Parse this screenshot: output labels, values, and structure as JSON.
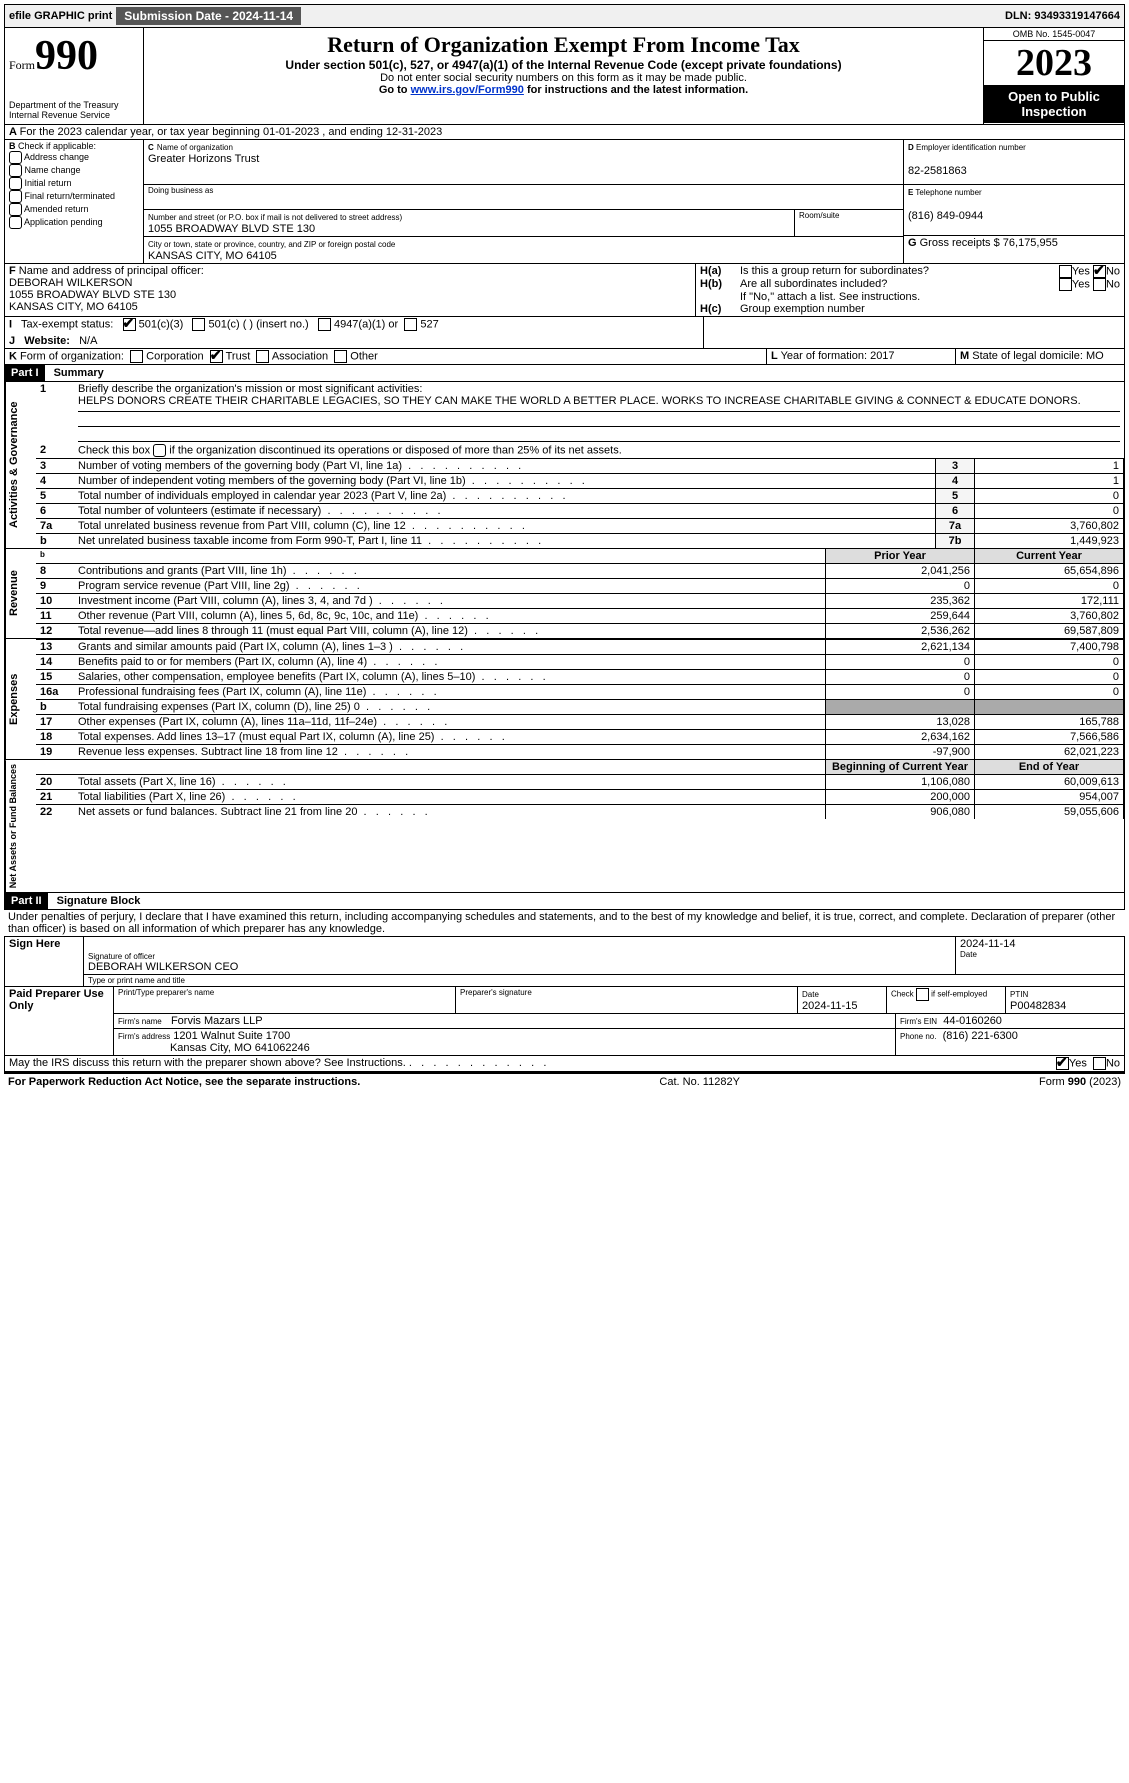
{
  "topbar": {
    "efile": "efile GRAPHIC print",
    "sub_label": "Submission Date - 2024-11-14",
    "dln_label": "DLN: 93493319147664"
  },
  "header": {
    "form_prefix": "Form",
    "form_number": "990",
    "title": "Return of Organization Exempt From Income Tax",
    "subtitle": "Under section 501(c), 527, or 4947(a)(1) of the Internal Revenue Code (except private foundations)",
    "warn": "Do not enter social security numbers on this form as it may be made public.",
    "goto": "Go to ",
    "goto_link": "www.irs.gov/Form990",
    "goto_after": " for instructions and the latest information.",
    "dept": "Department of the Treasury",
    "irs": "Internal Revenue Service",
    "omb": "OMB No. 1545-0047",
    "year": "2023",
    "open": "Open to Public Inspection"
  },
  "A": {
    "text": "For the 2023 calendar year, or tax year beginning 01-01-2023    , and ending 12-31-2023",
    "prefix": "A"
  },
  "B": {
    "label": "B",
    "check": "Check if applicable:",
    "opts": [
      "Address change",
      "Name change",
      "Initial return",
      "Final return/terminated",
      "Amended return",
      "Application pending"
    ]
  },
  "C": {
    "label": "C",
    "name_label": "Name of organization",
    "name": "Greater Horizons Trust",
    "dba_label": "Doing business as",
    "addr_label": "Number and street (or P.O. box if mail is not delivered to street address)",
    "addr": "1055 BROADWAY BLVD STE 130",
    "room_label": "Room/suite",
    "city_label": "City or town, state or province, country, and ZIP or foreign postal code",
    "city": "KANSAS CITY, MO  64105"
  },
  "D": {
    "label": "D",
    "ein_label": "Employer identification number",
    "ein": "82-2581863"
  },
  "E": {
    "label": "E",
    "tel_label": "Telephone number",
    "tel": "(816) 849-0944"
  },
  "G": {
    "label": "G",
    "gross_label": "Gross receipts $",
    "gross": "76,175,955"
  },
  "F": {
    "label": "F",
    "officer_label": "Name and address of principal officer:",
    "officer_name": "DEBORAH WILKERSON",
    "officer_addr1": "1055 BROADWAY BLVD STE 130",
    "officer_addr2": "KANSAS CITY, MO  64105"
  },
  "H": {
    "a": "Is this a group return for subordinates?",
    "b": "Are all subordinates included?",
    "b_note": "If \"No,\" attach a list. See instructions.",
    "c": "Group exemption number",
    "yes": "Yes",
    "no": "No"
  },
  "I": {
    "label": "I",
    "tax": "Tax-exempt status:",
    "o1": "501(c)(3)",
    "o2": "501(c) (  ) (insert no.)",
    "o3": "4947(a)(1) or",
    "o4": "527"
  },
  "J": {
    "label": "J",
    "web": "Website:",
    "val": "N/A"
  },
  "K": {
    "label": "K",
    "form": "Form of organization:",
    "o1": "Corporation",
    "o2": "Trust",
    "o3": "Association",
    "o4": "Other"
  },
  "L": {
    "label": "L",
    "yf": "Year of formation: 2017"
  },
  "M": {
    "label": "M",
    "dom": "State of legal domicile: MO"
  },
  "part1": {
    "hdr": "Part I",
    "title": "Summary",
    "side_ag": "Activities & Governance",
    "side_rev": "Revenue",
    "side_exp": "Expenses",
    "side_na": "Net Assets or Fund Balances",
    "l1": "Briefly describe the organization's mission or most significant activities:",
    "l1v": "HELPS DONORS CREATE THEIR CHARITABLE LEGACIES, SO THEY CAN MAKE THE WORLD A BETTER PLACE. WORKS TO INCREASE CHARITABLE GIVING & CONNECT & EDUCATE DONORS.",
    "l2": "Check this box      if the organization discontinued its operations or disposed of more than 25% of its net assets.",
    "rows_ag": [
      {
        "n": "3",
        "t": "Number of voting members of the governing body (Part VI, line 1a)",
        "k": "3",
        "v": "1"
      },
      {
        "n": "4",
        "t": "Number of independent voting members of the governing body (Part VI, line 1b)",
        "k": "4",
        "v": "1"
      },
      {
        "n": "5",
        "t": "Total number of individuals employed in calendar year 2023 (Part V, line 2a)",
        "k": "5",
        "v": "0"
      },
      {
        "n": "6",
        "t": "Total number of volunteers (estimate if necessary)",
        "k": "6",
        "v": "0"
      },
      {
        "n": "7a",
        "t": "Total unrelated business revenue from Part VIII, column (C), line 12",
        "k": "7a",
        "v": "3,760,802"
      },
      {
        "n": "b",
        "t": "Net unrelated business taxable income from Form 990-T, Part I, line 11",
        "k": "7b",
        "v": "1,449,923"
      }
    ],
    "col_prior": "Prior Year",
    "col_curr": "Current Year",
    "rows_rev": [
      {
        "n": "8",
        "t": "Contributions and grants (Part VIII, line 1h)",
        "p": "2,041,256",
        "c": "65,654,896"
      },
      {
        "n": "9",
        "t": "Program service revenue (Part VIII, line 2g)",
        "p": "0",
        "c": "0"
      },
      {
        "n": "10",
        "t": "Investment income (Part VIII, column (A), lines 3, 4, and 7d )",
        "p": "235,362",
        "c": "172,111"
      },
      {
        "n": "11",
        "t": "Other revenue (Part VIII, column (A), lines 5, 6d, 8c, 9c, 10c, and 11e)",
        "p": "259,644",
        "c": "3,760,802"
      },
      {
        "n": "12",
        "t": "Total revenue—add lines 8 through 11 (must equal Part VIII, column (A), line 12)",
        "p": "2,536,262",
        "c": "69,587,809"
      }
    ],
    "rows_exp": [
      {
        "n": "13",
        "t": "Grants and similar amounts paid (Part IX, column (A), lines 1–3 )",
        "p": "2,621,134",
        "c": "7,400,798"
      },
      {
        "n": "14",
        "t": "Benefits paid to or for members (Part IX, column (A), line 4)",
        "p": "0",
        "c": "0"
      },
      {
        "n": "15",
        "t": "Salaries, other compensation, employee benefits (Part IX, column (A), lines 5–10)",
        "p": "0",
        "c": "0"
      },
      {
        "n": "16a",
        "t": "Professional fundraising fees (Part IX, column (A), line 11e)",
        "p": "0",
        "c": "0"
      },
      {
        "n": "b",
        "t": "Total fundraising expenses (Part IX, column (D), line 25) 0",
        "p": "",
        "c": ""
      },
      {
        "n": "17",
        "t": "Other expenses (Part IX, column (A), lines 11a–11d, 11f–24e)",
        "p": "13,028",
        "c": "165,788"
      },
      {
        "n": "18",
        "t": "Total expenses. Add lines 13–17 (must equal Part IX, column (A), line 25)",
        "p": "2,634,162",
        "c": "7,566,586"
      },
      {
        "n": "19",
        "t": "Revenue less expenses. Subtract line 18 from line 12",
        "p": "-97,900",
        "c": "62,021,223"
      }
    ],
    "col_beg": "Beginning of Current Year",
    "col_end": "End of Year",
    "rows_na": [
      {
        "n": "20",
        "t": "Total assets (Part X, line 16)",
        "p": "1,106,080",
        "c": "60,009,613"
      },
      {
        "n": "21",
        "t": "Total liabilities (Part X, line 26)",
        "p": "200,000",
        "c": "954,007"
      },
      {
        "n": "22",
        "t": "Net assets or fund balances. Subtract line 21 from line 20",
        "p": "906,080",
        "c": "59,055,606"
      }
    ]
  },
  "part2": {
    "hdr": "Part II",
    "title": "Signature Block",
    "decl": "Under penalties of perjury, I declare that I have examined this return, including accompanying schedules and statements, and to the best of my knowledge and belief, it is true, correct, and complete. Declaration of preparer (other than officer) is based on all information of which preparer has any knowledge.",
    "sign_here": "Sign Here",
    "sig_officer": "Signature of officer",
    "officer": "DEBORAH WILKERSON  CEO",
    "type_name": "Type or print name and title",
    "date1": "2024-11-14",
    "date_l": "Date",
    "paid": "Paid Preparer Use Only",
    "prep_name_l": "Print/Type preparer's name",
    "prep_sig_l": "Preparer's signature",
    "date2": "2024-11-15",
    "check_se": "Check       if self-employed",
    "ptin_l": "PTIN",
    "ptin": "P00482834",
    "firm_name_l": "Firm's name",
    "firm_name": "Forvis Mazars LLP",
    "firm_ein_l": "Firm's EIN",
    "firm_ein": "44-0160260",
    "firm_addr_l": "Firm's address",
    "firm_addr1": "1201 Walnut Suite 1700",
    "firm_addr2": "Kansas City, MO  641062246",
    "phone_l": "Phone no.",
    "phone": "(816) 221-6300",
    "discuss": "May the IRS discuss this return with the preparer shown above? See Instructions."
  },
  "footer": {
    "pra": "For Paperwork Reduction Act Notice, see the separate instructions.",
    "cat": "Cat. No. 11282Y",
    "form": "Form 990 (2023)"
  }
}
